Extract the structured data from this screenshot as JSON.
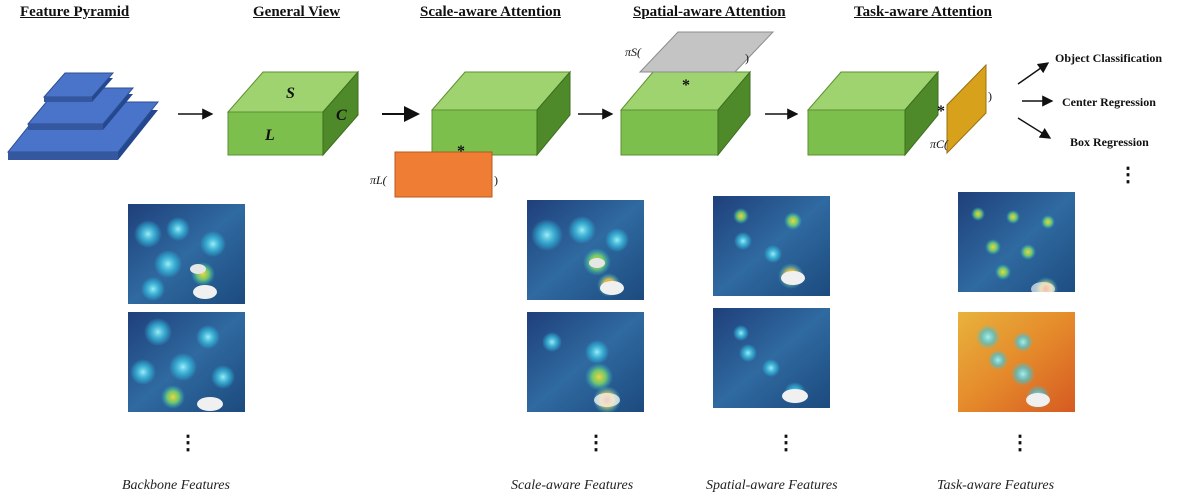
{
  "headers": {
    "feature_pyramid": "Feature Pyramid",
    "general_view": "General View",
    "scale_attention": "Scale-aware Attention",
    "spatial_attention": "Spatial-aware Attention",
    "task_attention": "Task-aware Attention"
  },
  "cube_labels": {
    "s": "S",
    "l": "L",
    "c": "C"
  },
  "operators": {
    "scale": "πL(",
    "spatial": "πS(",
    "task": "πC(",
    "close": ")",
    "star": "*"
  },
  "outputs": [
    "Object Classification",
    "Center Regression",
    "Box Regression"
  ],
  "ellipsis": "⋮",
  "captions": {
    "backbone": "Backbone Features",
    "scale": "Scale-aware Features",
    "spatial": "Spatial-aware Features",
    "task": "Task-aware Features"
  },
  "colors": {
    "pyramid_blue": "#4a74c9",
    "cube_green": "#7dbf4c",
    "scale_orange": "#ef7d34",
    "spatial_gray": "#c4c4c4",
    "task_gold": "#d7a11c"
  }
}
